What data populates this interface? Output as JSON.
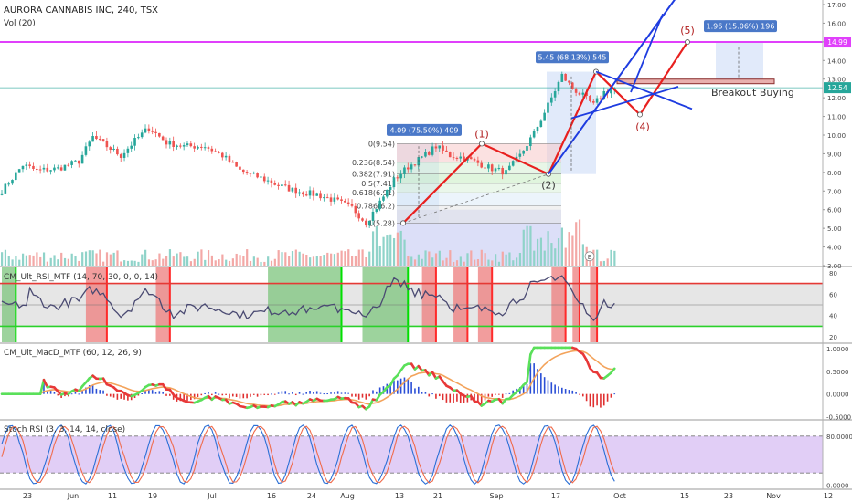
{
  "header": {
    "title": "AURORA CANNABIS INC, 240, TSX",
    "volume_label": "Vol (20)"
  },
  "rsi_label": "CM_Ult_RSI_MTF (14, 70, 30, 0, 0, 14)",
  "macd_label": "CM_Ult_MacD_MTF (60, 12, 26, 9)",
  "stoch_label": "Stoch RSI (3, 3, 14, 14, close)",
  "price_badges": {
    "resistance": "14.99",
    "last": "12.54"
  },
  "colors": {
    "up": "#26a69a",
    "down": "#ef5350",
    "resistance": "#e040fb",
    "wave": "#e8201f",
    "projection": "#1e3ce0",
    "fib": "#555555",
    "rsi_up_zone": "#7cc47c",
    "rsi_down_zone": "#ee7c7c"
  },
  "chart_data": [
    {
      "panel": "price",
      "type": "candlestick",
      "ylim": [
        3.0,
        17.0
      ],
      "y_ticks": [
        "3.00",
        "4.00",
        "5.00",
        "6.00",
        "7.00",
        "8.00",
        "9.00",
        "10.00",
        "11.00",
        "12.00",
        "13.00",
        "14.00",
        "15.00",
        "16.00",
        "17.00"
      ],
      "x_tick_labels": [
        "23",
        "Jun",
        "11",
        "19",
        "Jul",
        "16",
        "24",
        "Aug",
        "13",
        "21",
        "Sep",
        "17",
        "Oct",
        "15",
        "23",
        "Nov",
        "12"
      ],
      "price_path": [
        {
          "i": 0,
          "v": 7.0
        },
        {
          "i": 6,
          "v": 8.4
        },
        {
          "i": 10,
          "v": 8.1
        },
        {
          "i": 16,
          "v": 8.2
        },
        {
          "i": 22,
          "v": 8.6
        },
        {
          "i": 26,
          "v": 9.9
        },
        {
          "i": 30,
          "v": 9.4
        },
        {
          "i": 34,
          "v": 8.9
        },
        {
          "i": 38,
          "v": 9.7
        },
        {
          "i": 42,
          "v": 10.4
        },
        {
          "i": 47,
          "v": 9.6
        },
        {
          "i": 52,
          "v": 9.4
        },
        {
          "i": 58,
          "v": 9.4
        },
        {
          "i": 63,
          "v": 8.9
        },
        {
          "i": 68,
          "v": 8.1
        },
        {
          "i": 74,
          "v": 7.7
        },
        {
          "i": 79,
          "v": 7.3
        },
        {
          "i": 84,
          "v": 7.0
        },
        {
          "i": 90,
          "v": 6.8
        },
        {
          "i": 95,
          "v": 6.5
        },
        {
          "i": 100,
          "v": 6.1
        },
        {
          "i": 104,
          "v": 5.3
        },
        {
          "i": 108,
          "v": 6.4
        },
        {
          "i": 112,
          "v": 7.6
        },
        {
          "i": 116,
          "v": 8.3
        },
        {
          "i": 120,
          "v": 8.8
        },
        {
          "i": 124,
          "v": 9.4
        },
        {
          "i": 128,
          "v": 8.9
        },
        {
          "i": 132,
          "v": 8.8
        },
        {
          "i": 136,
          "v": 8.5
        },
        {
          "i": 140,
          "v": 8.2
        },
        {
          "i": 144,
          "v": 8.0
        },
        {
          "i": 148,
          "v": 8.9
        },
        {
          "i": 152,
          "v": 10.1
        },
        {
          "i": 156,
          "v": 11.6
        },
        {
          "i": 160,
          "v": 13.2
        },
        {
          "i": 163,
          "v": 12.5
        },
        {
          "i": 166,
          "v": 12.1
        },
        {
          "i": 169,
          "v": 11.6
        },
        {
          "i": 172,
          "v": 12.3
        },
        {
          "i": 175,
          "v": 12.5
        }
      ],
      "lines": {
        "resistance": 14.99,
        "last_price": 12.54
      },
      "fibonacci": [
        {
          "label": "0(9.54)",
          "v": 9.54
        },
        {
          "label": "0.236(8.54)",
          "v": 8.54
        },
        {
          "label": "0.382(7.91)",
          "v": 7.91
        },
        {
          "label": "0.5(7.41)",
          "v": 7.41
        },
        {
          "label": "0.618(6.91)",
          "v": 6.91
        },
        {
          "label": "0.786(6.2)",
          "v": 6.2
        },
        {
          "label": "1(5.28)",
          "v": 5.28
        }
      ],
      "waves": [
        {
          "label": "(1)",
          "v": 9.54
        },
        {
          "label": "(2)",
          "v": 7.91
        },
        {
          "label": "(4)",
          "v": 11.1
        },
        {
          "label": "(5)",
          "v": 14.99
        }
      ],
      "measurements": [
        {
          "label": "4.09 (75.50%) 409"
        },
        {
          "label": "5.45 (68.13%) 545"
        },
        {
          "label": "1.96 (15.06%) 196"
        }
      ],
      "annotations": [
        "Breakout Buying",
        "E"
      ]
    },
    {
      "panel": "rsi",
      "type": "line",
      "ylim": [
        15,
        85
      ],
      "y_ticks": [
        "80",
        "60",
        "40",
        "20"
      ],
      "bands": {
        "upper": 70,
        "lower": 30
      }
    },
    {
      "panel": "macd",
      "type": "line",
      "ylim": [
        -0.55,
        1.1
      ],
      "y_ticks": [
        "1.0000",
        "0.5000",
        "0.0000",
        "-0.5000"
      ]
    },
    {
      "panel": "stoch_rsi",
      "type": "line",
      "ylim": [
        -5,
        105
      ],
      "y_ticks": [
        "80.0000",
        "0.0000"
      ],
      "bands": {
        "upper": 80,
        "lower": 20
      }
    }
  ]
}
